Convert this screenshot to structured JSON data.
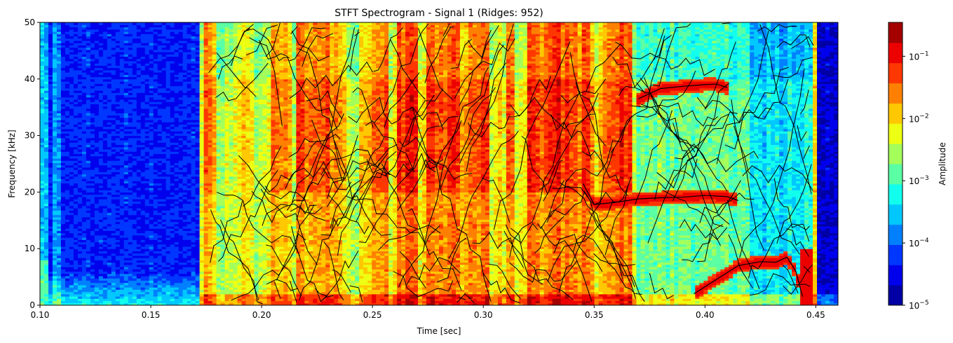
{
  "chart_data": {
    "type": "heatmap",
    "title": "STFT Spectrogram - Signal 1 (Ridges: 952)",
    "xlabel": "Time [sec]",
    "ylabel": "Frequency [kHz]",
    "xlim": [
      0.1,
      0.46
    ],
    "ylim": [
      0,
      50
    ],
    "x_ticks": [
      {
        "value": 0.1,
        "label": "0.10"
      },
      {
        "value": 0.15,
        "label": "0.15"
      },
      {
        "value": 0.2,
        "label": "0.20"
      },
      {
        "value": 0.25,
        "label": "0.25"
      },
      {
        "value": 0.3,
        "label": "0.30"
      },
      {
        "value": 0.35,
        "label": "0.35"
      },
      {
        "value": 0.4,
        "label": "0.40"
      },
      {
        "value": 0.45,
        "label": "0.45"
      }
    ],
    "y_ticks": [
      {
        "value": 0,
        "label": "0"
      },
      {
        "value": 10,
        "label": "10"
      },
      {
        "value": 20,
        "label": "20"
      },
      {
        "value": 30,
        "label": "30"
      },
      {
        "value": 40,
        "label": "40"
      },
      {
        "value": 50,
        "label": "50"
      }
    ],
    "colorbar": {
      "label": "Amplitude",
      "scale": "log",
      "colormap": "jet",
      "range": [
        1e-05,
        0.35
      ],
      "ticks": [
        {
          "value": 1e-05,
          "base": "10",
          "exp": "−5"
        },
        {
          "value": 0.0001,
          "base": "10",
          "exp": "−4"
        },
        {
          "value": 0.001,
          "base": "10",
          "exp": "−3"
        },
        {
          "value": 0.01,
          "base": "10",
          "exp": "−2"
        },
        {
          "value": 0.1,
          "base": "10",
          "exp": "−1"
        }
      ]
    },
    "harmonic_ridges": [
      {
        "t": [
          0.37,
          0.38,
          0.39,
          0.4,
          0.405,
          0.41
        ],
        "f": [
          36.5,
          38.3,
          38.7,
          39.0,
          39.1,
          38.5
        ]
      },
      {
        "t": [
          0.345,
          0.35,
          0.36,
          0.37,
          0.38,
          0.39,
          0.4,
          0.41,
          0.415
        ],
        "f": [
          21.5,
          17.8,
          18.2,
          18.8,
          19.0,
          19.1,
          19.4,
          19.2,
          18.5
        ]
      },
      {
        "t": [
          0.395,
          0.405,
          0.415,
          0.425,
          0.432,
          0.437,
          0.441,
          0.444
        ],
        "f": [
          2.0,
          4.5,
          7.0,
          7.7,
          7.6,
          8.5,
          6.0,
          1.5
        ]
      }
    ]
  }
}
